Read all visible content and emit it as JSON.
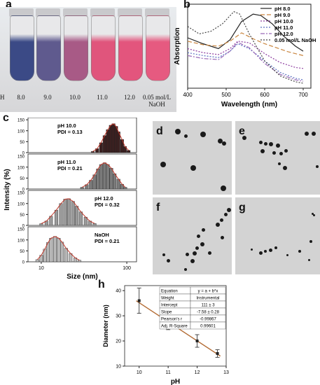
{
  "panels": {
    "a": "a",
    "b": "b",
    "c": "c",
    "d": "d",
    "e": "e",
    "f": "f",
    "g": "g",
    "h": "h"
  },
  "photo": {
    "ph_label": "pH",
    "samples": [
      {
        "label": "8.0",
        "color": "#3b4a86"
      },
      {
        "label": "9.0",
        "color": "#5f5a8e"
      },
      {
        "label": "10.0",
        "color": "#a85a86"
      },
      {
        "label": "11.0",
        "color": "#e0557c"
      },
      {
        "label": "12.0",
        "color": "#e3557d"
      },
      {
        "label": "0.05 mol/L NaOH",
        "color": "#e65a80"
      }
    ]
  },
  "chart_data": [
    {
      "id": "b",
      "type": "line",
      "xlabel": "Wavelength (nm)",
      "ylabel": "Absorption",
      "xlim": [
        400,
        720
      ],
      "xticks": [
        400,
        500,
        600,
        700
      ],
      "legend": "top-right",
      "series": [
        {
          "name": "pH 8.0",
          "color": "#222222",
          "dash": "",
          "x": [
            400,
            440,
            480,
            510,
            540,
            570,
            590,
            620,
            650,
            680,
            700
          ],
          "y": [
            1.02,
            0.9,
            0.8,
            0.98,
            1.35,
            1.5,
            1.47,
            1.3,
            1.05,
            0.85,
            0.75
          ]
        },
        {
          "name": "pH 9.0",
          "color": "#c9853e",
          "dash": "6,3",
          "x": [
            400,
            440,
            480,
            510,
            540,
            570,
            600,
            630,
            660,
            700
          ],
          "y": [
            0.95,
            0.88,
            0.85,
            0.95,
            1.12,
            1.0,
            0.9,
            0.82,
            0.74,
            0.66
          ]
        },
        {
          "name": "pH 10.0",
          "color": "#8e3ea0",
          "dash": "2,2",
          "x": [
            400,
            440,
            480,
            510,
            530,
            560,
            600,
            640,
            680,
            700
          ],
          "y": [
            0.8,
            0.72,
            0.68,
            0.8,
            0.95,
            0.92,
            0.7,
            0.52,
            0.42,
            0.4
          ]
        },
        {
          "name": "pH 11.0",
          "color": "#5a6fc0",
          "dash": "2,2",
          "x": [
            400,
            440,
            480,
            510,
            530,
            560,
            600,
            640,
            680,
            700
          ],
          "y": [
            0.72,
            0.66,
            0.62,
            0.75,
            0.9,
            0.8,
            0.55,
            0.32,
            0.2,
            0.17
          ]
        },
        {
          "name": "pH 12.0",
          "color": "#9a6bb8",
          "dash": "6,2,2,2",
          "x": [
            400,
            440,
            480,
            510,
            530,
            560,
            600,
            640,
            680,
            700
          ],
          "y": [
            0.66,
            0.6,
            0.58,
            0.75,
            0.93,
            0.82,
            0.5,
            0.28,
            0.17,
            0.14
          ]
        },
        {
          "name": "0.05 mol/L NaOH",
          "color": "#444444",
          "dash": "2,2",
          "x": [
            400,
            430,
            460,
            490,
            520,
            535,
            560,
            600,
            640,
            680,
            700
          ],
          "y": [
            1.25,
            1.1,
            1.15,
            1.3,
            1.55,
            1.5,
            1.1,
            0.55,
            0.25,
            0.13,
            0.1
          ]
        }
      ]
    },
    {
      "id": "c",
      "type": "bar",
      "xlabel": "Size (nm)",
      "ylabel": "Intensity (%)",
      "xscale": "log",
      "xticks": [
        10,
        100
      ],
      "yticks": [
        0,
        50,
        100,
        150
      ],
      "subplots": [
        {
          "label": "pH 10.0",
          "pdi": "PDI = 0.13",
          "color": "#3a2020",
          "bins": [
            [
              40,
              5
            ],
            [
              45,
              18
            ],
            [
              50,
              45
            ],
            [
              55,
              78
            ],
            [
              60,
              105
            ],
            [
              65,
              125
            ],
            [
              70,
              132
            ],
            [
              75,
              120
            ],
            [
              80,
              95
            ],
            [
              88,
              60
            ],
            [
              95,
              28
            ],
            [
              105,
              10
            ]
          ]
        },
        {
          "label": "pH 11.0",
          "pdi": "PDI = 0.21",
          "color": "#7a7a7a",
          "bins": [
            [
              30,
              8
            ],
            [
              34,
              20
            ],
            [
              38,
              40
            ],
            [
              42,
              65
            ],
            [
              46,
              92
            ],
            [
              50,
              112
            ],
            [
              55,
              120
            ],
            [
              60,
              112
            ],
            [
              66,
              95
            ],
            [
              72,
              70
            ],
            [
              80,
              45
            ],
            [
              88,
              22
            ],
            [
              96,
              8
            ]
          ]
        },
        {
          "label": "pH 12.0",
          "pdi": "PDI = 0.32",
          "color": "#9a9a9a",
          "bins": [
            [
              10,
              8
            ],
            [
              11.5,
              20
            ],
            [
              13,
              42
            ],
            [
              15,
              70
            ],
            [
              17,
              100
            ],
            [
              19,
              120
            ],
            [
              21,
              122
            ],
            [
              23.5,
              110
            ],
            [
              26,
              88
            ],
            [
              29,
              62
            ],
            [
              33,
              38
            ],
            [
              37,
              20
            ],
            [
              42,
              9
            ]
          ]
        },
        {
          "label": "NaOH",
          "pdi": "PDI = 0.21",
          "color": "#b8b8b8",
          "bins": [
            [
              9,
              10
            ],
            [
              10,
              30
            ],
            [
              11,
              58
            ],
            [
              12,
              88
            ],
            [
              13,
              108
            ],
            [
              14.5,
              116
            ],
            [
              16,
              108
            ],
            [
              17.5,
              90
            ],
            [
              19.5,
              62
            ],
            [
              22,
              38
            ],
            [
              25,
              18
            ],
            [
              28,
              7
            ]
          ]
        }
      ]
    },
    {
      "id": "h",
      "type": "scatter",
      "xlabel": "pH",
      "ylabel": "Diameter (nm)",
      "xlim": [
        9.5,
        13
      ],
      "ylim": [
        10,
        42
      ],
      "xticks": [
        10,
        11,
        12,
        13
      ],
      "yticks": [
        10,
        20,
        30,
        40
      ],
      "points": [
        {
          "x": 10.0,
          "y": 36.0,
          "err": 5.0
        },
        {
          "x": 11.0,
          "y": 27.5,
          "err": 3.0
        },
        {
          "x": 12.0,
          "y": 20.0,
          "err": 2.5
        },
        {
          "x": 12.7,
          "y": 15.0,
          "err": 1.5
        }
      ],
      "fit": {
        "intercept": 111,
        "slope": -7.58,
        "color": "#b26a32"
      },
      "table": [
        [
          "Equation",
          "y = a + b*x"
        ],
        [
          "Weight",
          "Instrumental"
        ],
        [
          "Intercept",
          "111 ± 3"
        ],
        [
          "Slope",
          "-7.58 ± 0.28"
        ],
        [
          "Pearson's r",
          "-0.99867"
        ],
        [
          "Adj. R-Square",
          "0.99601"
        ]
      ]
    }
  ]
}
